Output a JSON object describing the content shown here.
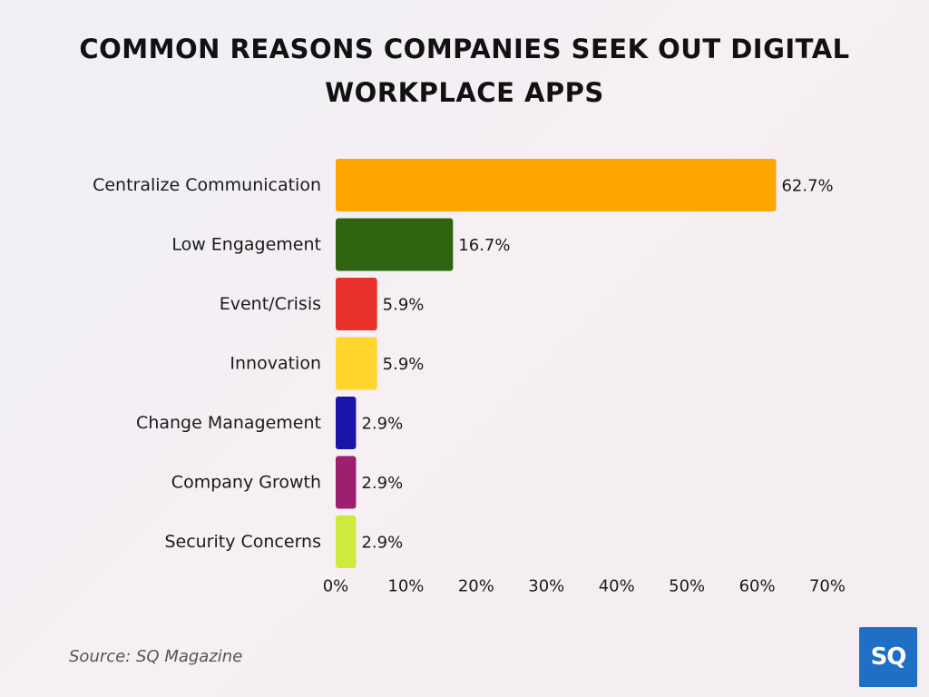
{
  "chart_data": {
    "type": "bar",
    "orientation": "horizontal",
    "title": "COMMON REASONS COMPANIES SEEK OUT DIGITAL WORKPLACE APPS",
    "categories": [
      "Centralize Communication",
      "Low Engagement",
      "Event/Crisis",
      "Innovation",
      "Change Management",
      "Company Growth",
      "Security Concerns"
    ],
    "values": [
      62.7,
      16.7,
      5.9,
      5.9,
      2.9,
      2.9,
      2.9
    ],
    "value_labels": [
      "62.7%",
      "16.7%",
      "5.9%",
      "5.9%",
      "2.9%",
      "2.9%",
      "2.9%"
    ],
    "colors": [
      "#ffa500",
      "#2f6410",
      "#e8312a",
      "#ffd52e",
      "#1c14a8",
      "#9c1f70",
      "#cfea3e"
    ],
    "xlim": [
      0,
      70
    ],
    "xticks": [
      0,
      10,
      20,
      30,
      40,
      50,
      60,
      70
    ],
    "xtick_labels": [
      "0%",
      "10%",
      "20%",
      "30%",
      "40%",
      "50%",
      "60%",
      "70%"
    ],
    "xlabel": "",
    "ylabel": "",
    "grid": false,
    "legend": "none"
  },
  "source_text": "Source: SQ Magazine",
  "logo_text": "SQ"
}
